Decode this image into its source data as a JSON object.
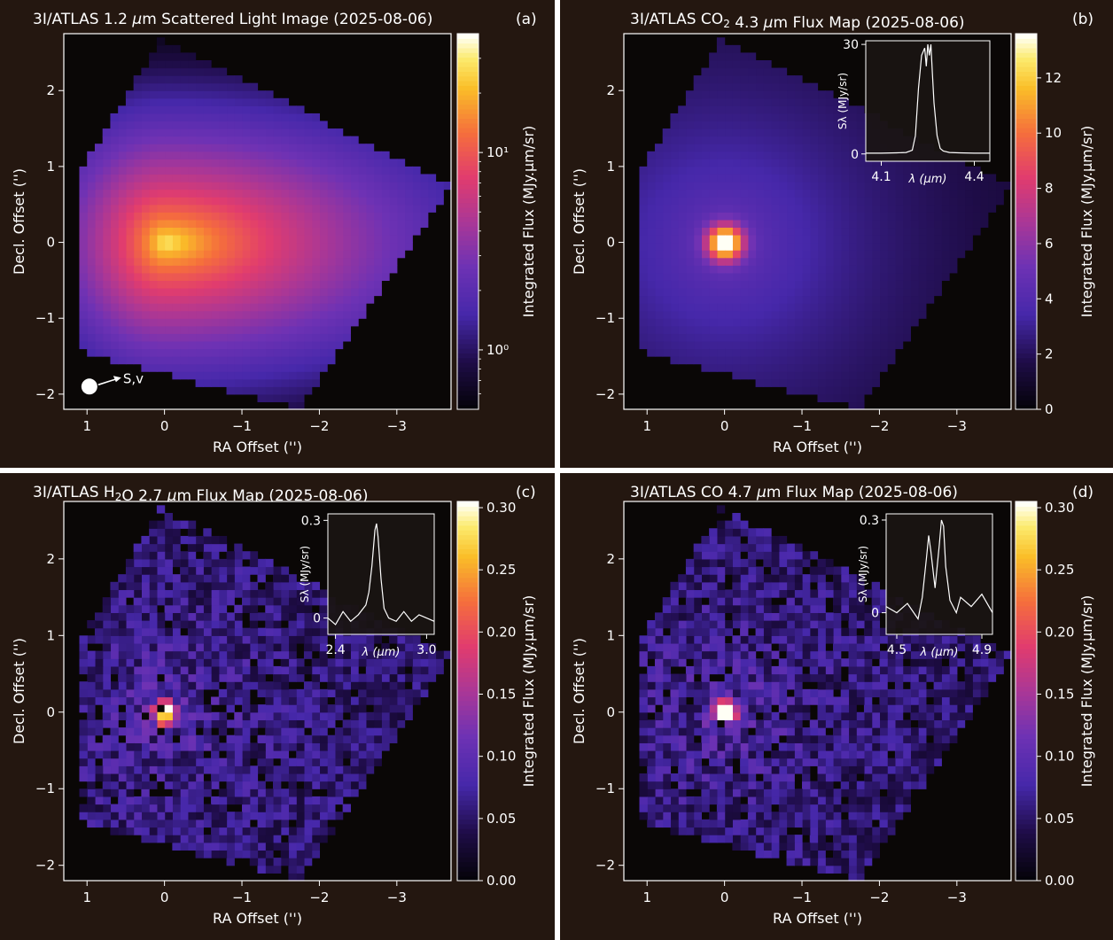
{
  "colors": {
    "panel_background": "#241710",
    "figure_background": "#ffffff",
    "axis_and_text": "#ffffff",
    "data_background": "#0a0706",
    "inset_background": "#1a1512",
    "colormap": "inferno-like (black → indigo → purple → magenta → orange → yellow → white)"
  },
  "chart_data": [
    {
      "type": "heatmap",
      "panel_label": "(a)",
      "title_parts": [
        "3I/ATLAS 1.2 ",
        "μ",
        "m Scattered Light Image (2025-08-06)"
      ],
      "xlabel": "RA Offset ('')",
      "ylabel": "Decl. Offset ('')",
      "xlim": [
        1.3,
        -3.7
      ],
      "ylim": [
        -2.2,
        2.75
      ],
      "xticks": [
        1,
        0,
        -1,
        -2,
        -3
      ],
      "xtick_labels": [
        "1",
        "0",
        "−1",
        "−2",
        "−3"
      ],
      "yticks": [
        -2,
        -1,
        0,
        1,
        2
      ],
      "ytick_labels": [
        "−2",
        "−1",
        "0",
        "1",
        "2"
      ],
      "colorbar": {
        "label": "Integrated Flux (MJy.μm/sr)",
        "scale": "log",
        "range": [
          0.5,
          40
        ],
        "ticks": [
          1,
          10
        ],
        "tick_labels": [
          "10⁰",
          "10¹"
        ]
      },
      "peak_position": [
        0,
        0
      ],
      "annotation": {
        "text": "S,v",
        "marker_position": [
          0.97,
          -1.9
        ]
      }
    },
    {
      "type": "heatmap",
      "panel_label": "(b)",
      "title_parts": [
        "3I/ATLAS CO",
        "2",
        " 4.3 ",
        "μ",
        "m Flux Map (2025-08-06)"
      ],
      "xlabel": "RA Offset ('')",
      "ylabel": "Decl. Offset ('')",
      "xlim": [
        1.3,
        -3.7
      ],
      "ylim": [
        -2.2,
        2.75
      ],
      "xticks": [
        1,
        0,
        -1,
        -2,
        -3
      ],
      "xtick_labels": [
        "1",
        "0",
        "−1",
        "−2",
        "−3"
      ],
      "yticks": [
        -2,
        -1,
        0,
        1,
        2
      ],
      "ytick_labels": [
        "−2",
        "−1",
        "0",
        "1",
        "2"
      ],
      "colorbar": {
        "label": "Integrated Flux (MJy.μm/sr)",
        "scale": "linear",
        "range": [
          0,
          13.6
        ],
        "ticks": [
          0,
          2,
          4,
          6,
          8,
          10,
          12
        ],
        "tick_labels": [
          "0",
          "2",
          "4",
          "6",
          "8",
          "10",
          "12"
        ]
      },
      "peak_position": [
        0,
        0
      ],
      "inset": {
        "type": "line",
        "xlabel": "λ (μm)",
        "ylabel": "Sλ (MJy/sr)",
        "xlim": [
          4.05,
          4.45
        ],
        "ylim": [
          -2,
          31
        ],
        "xticks": [
          4.1,
          4.4
        ],
        "xtick_labels": [
          "4.1",
          "4.4"
        ],
        "yticks": [
          0,
          30
        ],
        "ytick_labels": [
          "0",
          "30"
        ],
        "x": [
          4.05,
          4.1,
          4.15,
          4.18,
          4.2,
          4.21,
          4.22,
          4.23,
          4.24,
          4.245,
          4.25,
          4.255,
          4.26,
          4.265,
          4.27,
          4.28,
          4.29,
          4.3,
          4.32,
          4.35,
          4.4,
          4.45
        ],
        "y": [
          0.2,
          0.2,
          0.3,
          0.4,
          1.0,
          5,
          18,
          27,
          29,
          24,
          30,
          27,
          30,
          22,
          14,
          5,
          1.5,
          0.8,
          0.4,
          0.3,
          0.2,
          0.2
        ]
      }
    },
    {
      "type": "heatmap",
      "panel_label": "(c)",
      "title_parts": [
        "3I/ATLAS H",
        "2",
        "O 2.7 ",
        "μ",
        "m Flux Map (2025-08-06)"
      ],
      "xlabel": "RA Offset ('')",
      "ylabel": "Decl. Offset ('')",
      "xlim": [
        1.3,
        -3.7
      ],
      "ylim": [
        -2.2,
        2.75
      ],
      "xticks": [
        1,
        0,
        -1,
        -2,
        -3
      ],
      "xtick_labels": [
        "1",
        "0",
        "−1",
        "−2",
        "−3"
      ],
      "yticks": [
        -2,
        -1,
        0,
        1,
        2
      ],
      "ytick_labels": [
        "−2",
        "−1",
        "0",
        "1",
        "2"
      ],
      "colorbar": {
        "label": "Integrated Flux (MJy.μm/sr)",
        "scale": "linear",
        "range": [
          0,
          0.305
        ],
        "ticks": [
          0,
          0.05,
          0.1,
          0.15,
          0.2,
          0.25,
          0.3
        ],
        "tick_labels": [
          "0.00",
          "0.05",
          "0.10",
          "0.15",
          "0.20",
          "0.25",
          "0.30"
        ]
      },
      "peak_position": [
        0,
        0
      ],
      "inset": {
        "type": "line",
        "xlabel": "λ (μm)",
        "ylabel": "Sλ (MJy/sr)",
        "xlim": [
          2.35,
          3.05
        ],
        "ylim": [
          -0.05,
          0.32
        ],
        "xticks": [
          2.4,
          3.0
        ],
        "xtick_labels": [
          "2.4",
          "3.0"
        ],
        "yticks": [
          0,
          0.3
        ],
        "ytick_labels": [
          "0",
          "0.3"
        ],
        "x": [
          2.35,
          2.4,
          2.45,
          2.5,
          2.55,
          2.6,
          2.62,
          2.64,
          2.66,
          2.67,
          2.68,
          2.7,
          2.72,
          2.75,
          2.8,
          2.85,
          2.9,
          2.95,
          3.0,
          3.05
        ],
        "y": [
          0.0,
          -0.02,
          0.02,
          -0.01,
          0.01,
          0.04,
          0.08,
          0.16,
          0.27,
          0.29,
          0.25,
          0.12,
          0.03,
          0.0,
          -0.01,
          0.02,
          -0.01,
          0.01,
          0.0,
          -0.01
        ]
      }
    },
    {
      "type": "heatmap",
      "panel_label": "(d)",
      "title_parts": [
        "3I/ATLAS CO 4.7 ",
        "μ",
        "m Flux Map (2025-08-06)"
      ],
      "xlabel": "RA Offset ('')",
      "ylabel": "Decl. Offset ('')",
      "xlim": [
        1.3,
        -3.7
      ],
      "ylim": [
        -2.2,
        2.75
      ],
      "xticks": [
        1,
        0,
        -1,
        -2,
        -3
      ],
      "xtick_labels": [
        "1",
        "0",
        "−1",
        "−2",
        "−3"
      ],
      "yticks": [
        -2,
        -1,
        0,
        1,
        2
      ],
      "ytick_labels": [
        "−2",
        "−1",
        "0",
        "1",
        "2"
      ],
      "colorbar": {
        "label": "Integrated Flux (MJy.μm/sr)",
        "scale": "linear",
        "range": [
          0,
          0.305
        ],
        "ticks": [
          0,
          0.05,
          0.1,
          0.15,
          0.2,
          0.25,
          0.3
        ],
        "tick_labels": [
          "0.00",
          "0.05",
          "0.10",
          "0.15",
          "0.20",
          "0.25",
          "0.30"
        ]
      },
      "peak_position": [
        0,
        0
      ],
      "inset": {
        "type": "line",
        "xlabel": "λ (μm)",
        "ylabel": "Sλ (MJy/sr)",
        "xlim": [
          4.45,
          4.95
        ],
        "ylim": [
          -0.07,
          0.32
        ],
        "xticks": [
          4.5,
          4.9
        ],
        "xtick_labels": [
          "4.5",
          "4.9"
        ],
        "yticks": [
          0,
          0.3
        ],
        "ytick_labels": [
          "0",
          "0.3"
        ],
        "x": [
          4.45,
          4.5,
          4.55,
          4.6,
          4.62,
          4.64,
          4.65,
          4.66,
          4.68,
          4.7,
          4.71,
          4.72,
          4.73,
          4.75,
          4.78,
          4.8,
          4.85,
          4.9,
          4.95
        ],
        "y": [
          0.02,
          0.0,
          0.03,
          -0.02,
          0.05,
          0.18,
          0.25,
          0.2,
          0.08,
          0.22,
          0.3,
          0.28,
          0.15,
          0.04,
          0.0,
          0.05,
          0.02,
          0.06,
          0.0
        ]
      }
    }
  ]
}
